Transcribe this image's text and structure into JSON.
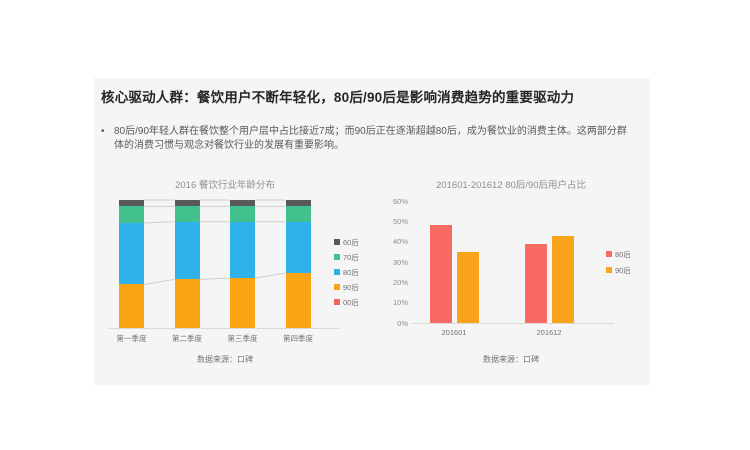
{
  "slide": {
    "title": "核心驱动人群：餐饮用户不断年轻化，80后/90后是影响消费趋势的重要驱动力",
    "bullet": "80后/90年轻人群在餐饮整个用户层中占比接近7成；而90后正在逐渐超越80后，成为餐饮业的消费主体。这两部分群体的消费习惯与观念对餐饮行业的发展有重要影响。"
  },
  "chart_data": [
    {
      "type": "bar",
      "subtype": "stacked_percent_column",
      "title": "2016 餐饮行业年龄分布",
      "categories": [
        "第一季度",
        "第二季度",
        "第三季度",
        "第四季度"
      ],
      "series": [
        {
          "name": "90后",
          "color": "#f9a513",
          "values": [
            34,
            38,
            39,
            43
          ]
        },
        {
          "name": "80后",
          "color": "#2fb1ea",
          "values": [
            48,
            45,
            44,
            40
          ]
        },
        {
          "name": "70后",
          "color": "#42c08e",
          "values": [
            13,
            12,
            12,
            12
          ]
        },
        {
          "name": "60后",
          "color": "#595959",
          "values": [
            5,
            5,
            5,
            5
          ]
        },
        {
          "name": "00后",
          "color": "#f4655c",
          "values": [
            0,
            0,
            0,
            0
          ]
        }
      ],
      "legend_order": [
        "60后",
        "70后",
        "80后",
        "90后",
        "00后"
      ],
      "legend_position": "right",
      "series_lines": true,
      "ylim": [
        0,
        100
      ],
      "y_axis_visible": false,
      "unit": "%",
      "source": "数据来源：口碑"
    },
    {
      "type": "bar",
      "subtype": "grouped_column",
      "title": "201601-201612  80后/90后用户占比",
      "categories": [
        "201601",
        "201612"
      ],
      "series": [
        {
          "name": "80后",
          "color": "#f96b62",
          "values": [
            48,
            39
          ]
        },
        {
          "name": "90后",
          "color": "#faa41c",
          "values": [
            35,
            43
          ]
        }
      ],
      "legend_order": [
        "80后",
        "90后"
      ],
      "legend_position": "right",
      "ylim": [
        0,
        60
      ],
      "ytick_step": 10,
      "ytick_labels": [
        "0%",
        "10%",
        "20%",
        "30%",
        "40%",
        "50%",
        "60%"
      ],
      "unit": "%",
      "source": "数据来源：口碑"
    }
  ]
}
